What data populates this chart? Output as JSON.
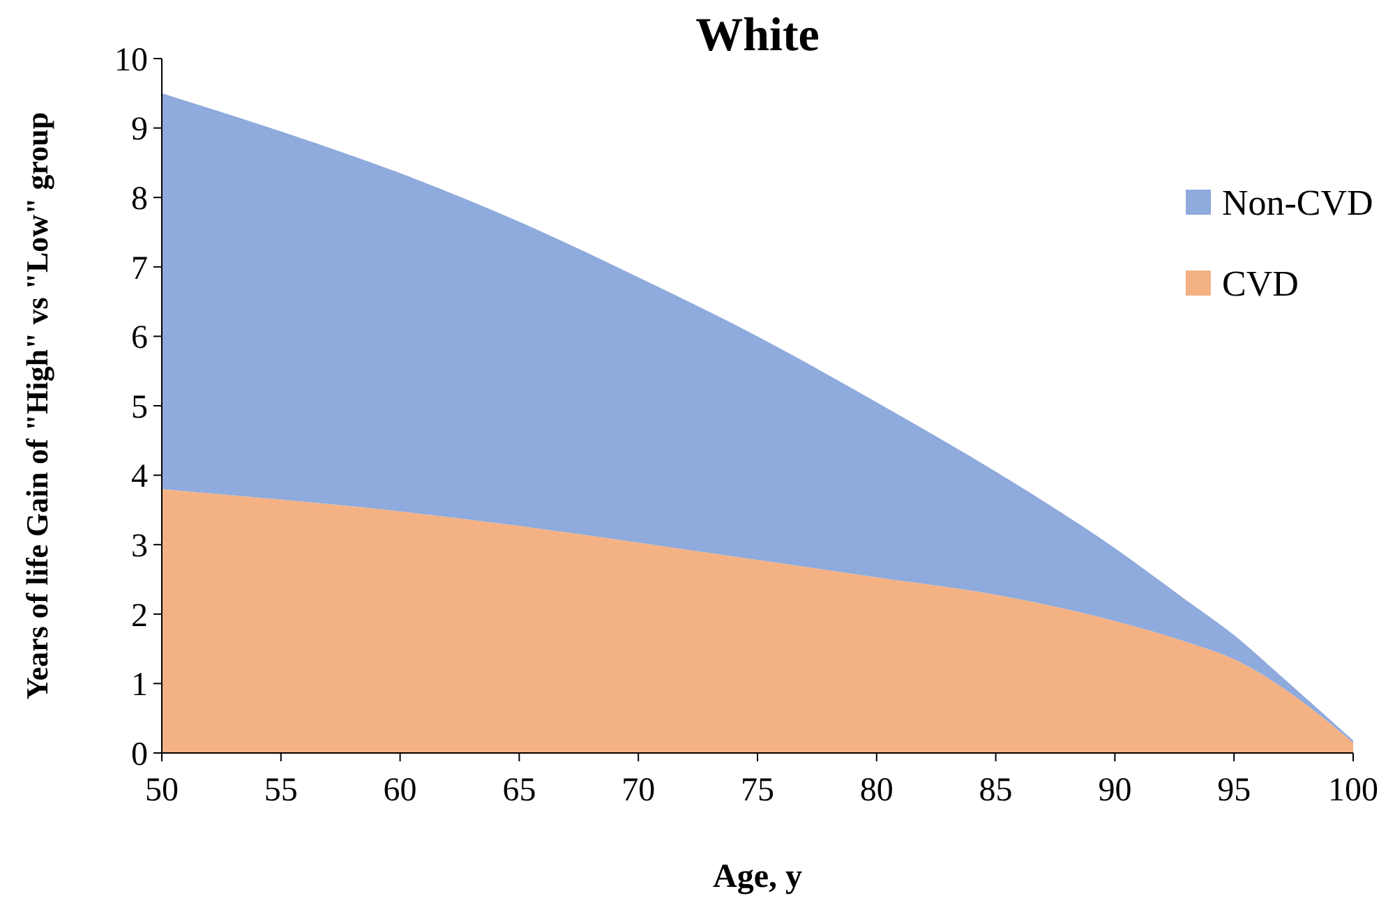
{
  "chart_data": {
    "type": "area",
    "title": "White",
    "xlabel": "Age, y",
    "ylabel": "Years of life Gain of \"High\" vs \"Low\" group",
    "stacked": true,
    "x": [
      50,
      55,
      60,
      65,
      70,
      75,
      80,
      85,
      90,
      93,
      95,
      97,
      100
    ],
    "series": [
      {
        "name": "CVD",
        "color": "#f4b183",
        "values": [
          3.8,
          3.65,
          3.48,
          3.27,
          3.03,
          2.78,
          2.53,
          2.28,
          1.9,
          1.6,
          1.35,
          0.95,
          0.15
        ]
      },
      {
        "name": "Non-CVD",
        "color": "#8faadc",
        "values": [
          5.7,
          5.3,
          4.87,
          4.38,
          3.82,
          3.22,
          2.52,
          1.77,
          1.05,
          0.6,
          0.35,
          0.15,
          0.03
        ]
      }
    ],
    "xlim": [
      50,
      100
    ],
    "xticks": [
      50,
      55,
      60,
      65,
      70,
      75,
      80,
      85,
      90,
      95,
      100
    ],
    "ylim": [
      0,
      10
    ],
    "yticks": [
      0,
      1,
      2,
      3,
      4,
      5,
      6,
      7,
      8,
      9,
      10
    ],
    "grid": false,
    "legend": "right"
  }
}
